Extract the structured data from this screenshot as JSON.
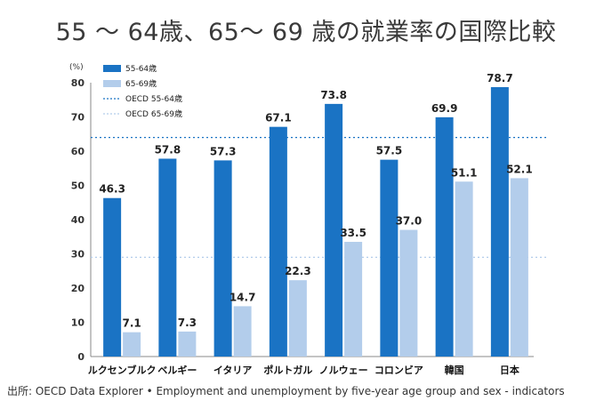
{
  "title": "55 〜 64歳、65〜 69 歳の就業率の国際比較",
  "source": "出所: OECD Data Explorer • Employment and unemployment by five-year age group and sex - indicators",
  "chart_data": {
    "type": "bar",
    "unit_label": "(%)",
    "categories": [
      "ルクセンブルク",
      "ベルギー",
      "イタリア",
      "ポルトガル",
      "ノルウェー",
      "コロンビア",
      "韓国",
      "日本"
    ],
    "series": [
      {
        "name": "55-64歳",
        "color": "#1a73c4",
        "values": [
          46.3,
          57.8,
          57.3,
          67.1,
          73.8,
          57.5,
          69.9,
          78.7
        ]
      },
      {
        "name": "65-69歳",
        "color": "#b3cdeb",
        "values": [
          7.1,
          7.3,
          14.7,
          22.3,
          33.5,
          37.0,
          51.1,
          52.1
        ]
      }
    ],
    "reference_lines": [
      {
        "name": "OECD 55-64歳",
        "value": 64.0,
        "color": "#1a73c4"
      },
      {
        "name": "OECD 65-69歳",
        "value": 29.0,
        "color": "#b3cdeb"
      }
    ],
    "ylim": [
      0,
      80
    ],
    "yticks": [
      "0",
      "10",
      "20",
      "30",
      "40",
      "50",
      "60",
      "70",
      "80"
    ],
    "legend_position": "top-left"
  }
}
